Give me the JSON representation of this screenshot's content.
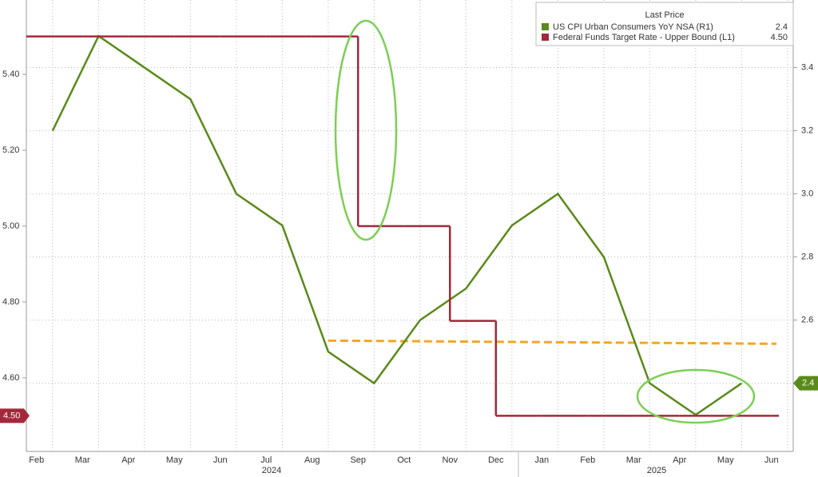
{
  "chart_data": {
    "type": "line",
    "legend_title": "Last Price",
    "categories": [
      "Feb",
      "Mar",
      "Apr",
      "May",
      "Jun",
      "Jul",
      "Aug",
      "Sep",
      "Oct",
      "Nov",
      "Dec",
      "Jan",
      "Feb",
      "Mar",
      "Apr",
      "May",
      "Jun"
    ],
    "years": [
      "2024",
      "2025"
    ],
    "series": [
      {
        "name": "US CPI Urban Consumers YoY NSA  (R1)",
        "color": "#5a8a1a",
        "axis": "y2",
        "style": "line",
        "values": [
          3.2,
          3.5,
          3.4,
          3.3,
          3.0,
          2.9,
          2.5,
          2.4,
          2.6,
          2.7,
          2.9,
          3.0,
          2.8,
          2.4,
          2.3,
          2.4,
          null
        ],
        "last_value_label": "2.4"
      },
      {
        "name": "Federal Funds Target Rate - Upper Bound  (L1)",
        "color": "#a3283a",
        "axis": "y",
        "style": "step",
        "values": [
          5.5,
          5.5,
          5.5,
          5.5,
          5.5,
          5.5,
          5.5,
          5.0,
          5.0,
          4.75,
          4.5,
          4.5,
          4.5,
          4.5,
          4.5,
          4.5,
          4.5
        ],
        "last_value_label": "4.50"
      }
    ],
    "reference_line": {
      "color": "#f5a623",
      "axis": "y2",
      "values": [
        2.535,
        2.525
      ]
    },
    "ylim": [
      4.406,
      5.596
    ],
    "yticks": [
      {
        "value": 4.6,
        "label": "4.60"
      },
      {
        "value": 4.8,
        "label": "4.80"
      },
      {
        "value": 5.0,
        "label": "5.00"
      },
      {
        "value": 5.2,
        "label": "5.20"
      },
      {
        "value": 5.4,
        "label": "5.40"
      }
    ],
    "y2lim": [
      2.184,
      3.614
    ],
    "y2ticks": [
      2.4,
      2.6,
      2.8,
      {
        "value": 3.0,
        "label": "3.0"
      },
      3.2,
      3.4
    ],
    "grid": true
  }
}
